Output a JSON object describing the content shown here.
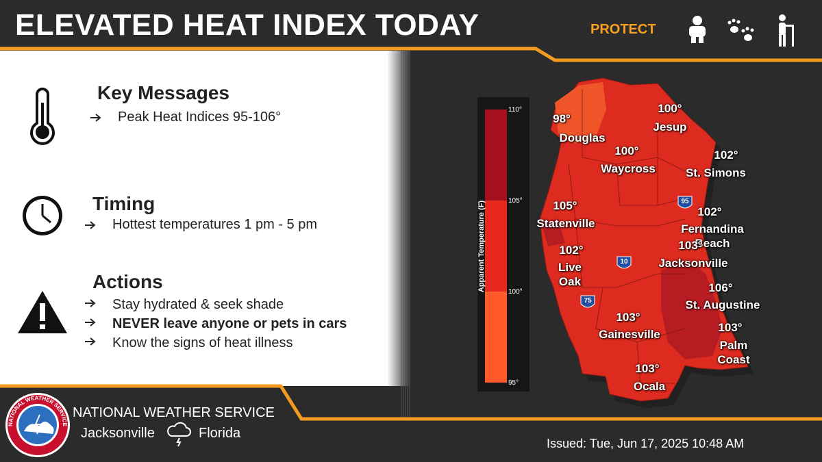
{
  "header": {
    "title": "ELEVATED HEAT INDEX TODAY",
    "protect": "PROTECT"
  },
  "sections": [
    {
      "heading": "Key Messages",
      "items": [
        "Peak Heat Indices 95-106°"
      ]
    },
    {
      "heading": "Timing",
      "items": [
        "Hottest temperatures 1 pm - 5 pm"
      ]
    },
    {
      "heading": "Actions",
      "items": [
        "Stay hydrated & seek shade",
        "NEVER leave anyone or pets in cars",
        "Know the signs of heat illness"
      ]
    }
  ],
  "map": {
    "legend": {
      "title": "Apparent Temperature (F)",
      "ticks": [
        "110°",
        "105°",
        "100°",
        "95°"
      ]
    },
    "cities": [
      {
        "temp": "98°",
        "name": "Douglas"
      },
      {
        "temp": "100°",
        "name": "Jesup"
      },
      {
        "temp": "100°",
        "name": "Waycross"
      },
      {
        "temp": "102°",
        "name": "St. Simons"
      },
      {
        "temp": "105°",
        "name": "Statenville"
      },
      {
        "temp": "102°",
        "name": "Fernandina Beach"
      },
      {
        "temp": "102°",
        "name": "Live Oak"
      },
      {
        "temp": "103°",
        "name": "Jacksonville"
      },
      {
        "temp": "106°",
        "name": "St. Augustine"
      },
      {
        "temp": "103°",
        "name": "Gainesville"
      },
      {
        "temp": "103°",
        "name": "Palm Coast"
      },
      {
        "temp": "103°",
        "name": "Ocala"
      }
    ],
    "highways": [
      "95",
      "10",
      "75"
    ]
  },
  "footer": {
    "org": "NATIONAL WEATHER SERVICE",
    "office": "Jacksonville",
    "state": "Florida",
    "issued": "Issued: Tue, Jun 17, 2025 10:48 AM"
  }
}
